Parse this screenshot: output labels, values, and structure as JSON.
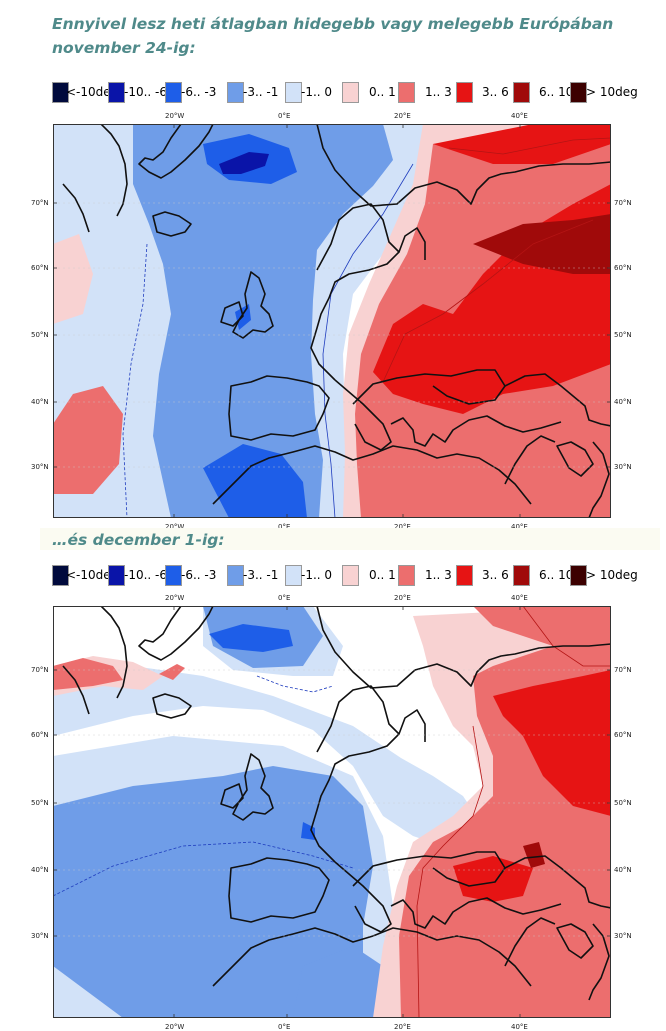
{
  "headings": {
    "first": "Ennyivel lesz heti átlagban hidegebb vagy melegebb Európában november 24-ig:",
    "second": "…és december 1-ig:"
  },
  "legend": {
    "items": [
      {
        "label": "<-10deg",
        "color": "#000a3c"
      },
      {
        "label": "-10.. -6",
        "color": "#0a14a8"
      },
      {
        "label": "-6.. -3",
        "color": "#1e5ee8"
      },
      {
        "label": "-3.. -1",
        "color": "#6f9de8"
      },
      {
        "label": "-1.. 0",
        "color": "#d2e2f8"
      },
      {
        "label": "0.. 1",
        "color": "#f8d2d2"
      },
      {
        "label": "1.. 3",
        "color": "#ec6e6e"
      },
      {
        "label": "3.. 6",
        "color": "#e61414"
      },
      {
        "label": "6.. 10",
        "color": "#a00a0a"
      },
      {
        "label": "> 10deg",
        "color": "#3c0000"
      }
    ]
  },
  "axes": {
    "lon_ticks": [
      "20°W",
      "0°E",
      "20°E",
      "40°E"
    ],
    "lat_ticks": [
      "70°N",
      "60°N",
      "50°N",
      "40°N",
      "30°N"
    ]
  }
}
